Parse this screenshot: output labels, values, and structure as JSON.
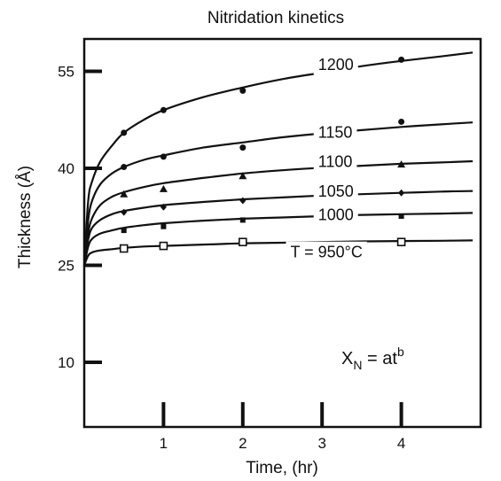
{
  "chart_data": {
    "type": "scatter",
    "title": "Nitridation kinetics",
    "xlabel": "Time, (hr)",
    "ylabel": "Thickness (Å)",
    "xlim": [
      0,
      5
    ],
    "ylim": [
      0,
      60
    ],
    "xticks": [
      1,
      2,
      3,
      4
    ],
    "yticks": [
      10,
      25,
      40,
      55
    ],
    "grid": false,
    "annotation": {
      "base": "X",
      "sub": "N",
      "eq": " = at",
      "sup": "b"
    },
    "series": [
      {
        "name": "1200",
        "curve": [
          [
            0,
            25
          ],
          [
            0.05,
            35
          ],
          [
            0.1,
            38
          ],
          [
            0.2,
            41
          ],
          [
            0.35,
            43.5
          ],
          [
            0.5,
            45.5
          ],
          [
            0.75,
            47.5
          ],
          [
            1,
            49
          ],
          [
            1.5,
            51
          ],
          [
            2,
            52.5
          ],
          [
            2.5,
            53.8
          ],
          [
            3,
            54.8
          ],
          [
            3.5,
            55.8
          ],
          [
            4,
            56.6
          ],
          [
            4.5,
            57.3
          ],
          [
            4.9,
            57.9
          ]
        ],
        "points": [
          [
            0.5,
            45.5
          ],
          [
            1,
            49
          ],
          [
            2,
            52
          ],
          [
            4,
            56.8
          ]
        ],
        "marker": "circle",
        "label_x": 2.95,
        "label_y": 55.2
      },
      {
        "name": "1150",
        "curve": [
          [
            0,
            25
          ],
          [
            0.05,
            32
          ],
          [
            0.1,
            35
          ],
          [
            0.2,
            37.5
          ],
          [
            0.35,
            39.2
          ],
          [
            0.5,
            40.2
          ],
          [
            0.75,
            41.3
          ],
          [
            1,
            42
          ],
          [
            1.5,
            43.2
          ],
          [
            2,
            44
          ],
          [
            2.5,
            44.8
          ],
          [
            3,
            45.4
          ],
          [
            3.5,
            45.9
          ],
          [
            4,
            46.4
          ],
          [
            4.5,
            46.8
          ],
          [
            4.9,
            47.1
          ]
        ],
        "points": [
          [
            0.5,
            40.2
          ],
          [
            1,
            41.8
          ],
          [
            2,
            43.2
          ],
          [
            4,
            47.2
          ]
        ],
        "marker": "circle",
        "label_x": 2.95,
        "label_y": 44.7
      },
      {
        "name": "1100",
        "curve": [
          [
            0,
            25
          ],
          [
            0.05,
            30
          ],
          [
            0.1,
            32.3
          ],
          [
            0.2,
            34.3
          ],
          [
            0.35,
            35.6
          ],
          [
            0.5,
            36.3
          ],
          [
            0.75,
            37.1
          ],
          [
            1,
            37.7
          ],
          [
            1.5,
            38.5
          ],
          [
            2,
            39.2
          ],
          [
            2.5,
            39.7
          ],
          [
            3,
            40.1
          ],
          [
            3.5,
            40.4
          ],
          [
            4,
            40.7
          ],
          [
            4.5,
            40.9
          ],
          [
            4.9,
            41.1
          ]
        ],
        "points": [
          [
            0.5,
            36
          ],
          [
            1,
            36.8
          ],
          [
            2,
            38.8
          ],
          [
            4,
            40.6
          ]
        ],
        "marker": "triangle",
        "label_x": 2.95,
        "label_y": 40.2
      },
      {
        "name": "1050",
        "curve": [
          [
            0,
            25
          ],
          [
            0.05,
            29
          ],
          [
            0.1,
            30.8
          ],
          [
            0.2,
            32
          ],
          [
            0.35,
            32.9
          ],
          [
            0.5,
            33.4
          ],
          [
            0.75,
            33.9
          ],
          [
            1,
            34.3
          ],
          [
            1.5,
            34.8
          ],
          [
            2,
            35.2
          ],
          [
            2.5,
            35.5
          ],
          [
            3,
            35.8
          ],
          [
            3.5,
            36
          ],
          [
            4,
            36.2
          ],
          [
            4.5,
            36.4
          ],
          [
            4.9,
            36.5
          ]
        ],
        "points": [
          [
            0.5,
            33.2
          ],
          [
            1,
            34
          ],
          [
            2,
            35
          ],
          [
            4,
            36.2
          ]
        ],
        "marker": "diamond",
        "label_x": 2.95,
        "label_y": 35.6
      },
      {
        "name": "1000",
        "curve": [
          [
            0,
            25
          ],
          [
            0.05,
            27.9
          ],
          [
            0.1,
            29.1
          ],
          [
            0.2,
            29.9
          ],
          [
            0.35,
            30.4
          ],
          [
            0.5,
            30.8
          ],
          [
            0.75,
            31.2
          ],
          [
            1,
            31.5
          ],
          [
            1.5,
            31.9
          ],
          [
            2,
            32.2
          ],
          [
            2.5,
            32.4
          ],
          [
            3,
            32.6
          ],
          [
            3.5,
            32.8
          ],
          [
            4,
            32.9
          ],
          [
            4.5,
            33
          ],
          [
            4.9,
            33.1
          ]
        ],
        "points": [
          [
            0.5,
            30.4
          ],
          [
            1,
            31
          ],
          [
            2,
            32
          ],
          [
            4,
            32.6
          ]
        ],
        "marker": "square",
        "label_x": 2.95,
        "label_y": 32
      },
      {
        "name": "T = 950°C",
        "curve": [
          [
            0,
            25
          ],
          [
            0.05,
            26.5
          ],
          [
            0.1,
            27
          ],
          [
            0.2,
            27.3
          ],
          [
            0.35,
            27.5
          ],
          [
            0.5,
            27.7
          ],
          [
            0.75,
            27.9
          ],
          [
            1,
            28
          ],
          [
            1.5,
            28.2
          ],
          [
            2,
            28.4
          ],
          [
            2.5,
            28.5
          ],
          [
            3,
            28.6
          ],
          [
            3.5,
            28.7
          ],
          [
            4,
            28.75
          ],
          [
            4.5,
            28.8
          ],
          [
            4.9,
            28.85
          ]
        ],
        "points": [
          [
            0.5,
            27.6
          ],
          [
            1,
            28
          ],
          [
            2,
            28.6
          ],
          [
            4,
            28.6
          ]
        ],
        "marker": "open-square",
        "label_x": 2.6,
        "label_y": 26.2
      }
    ]
  }
}
